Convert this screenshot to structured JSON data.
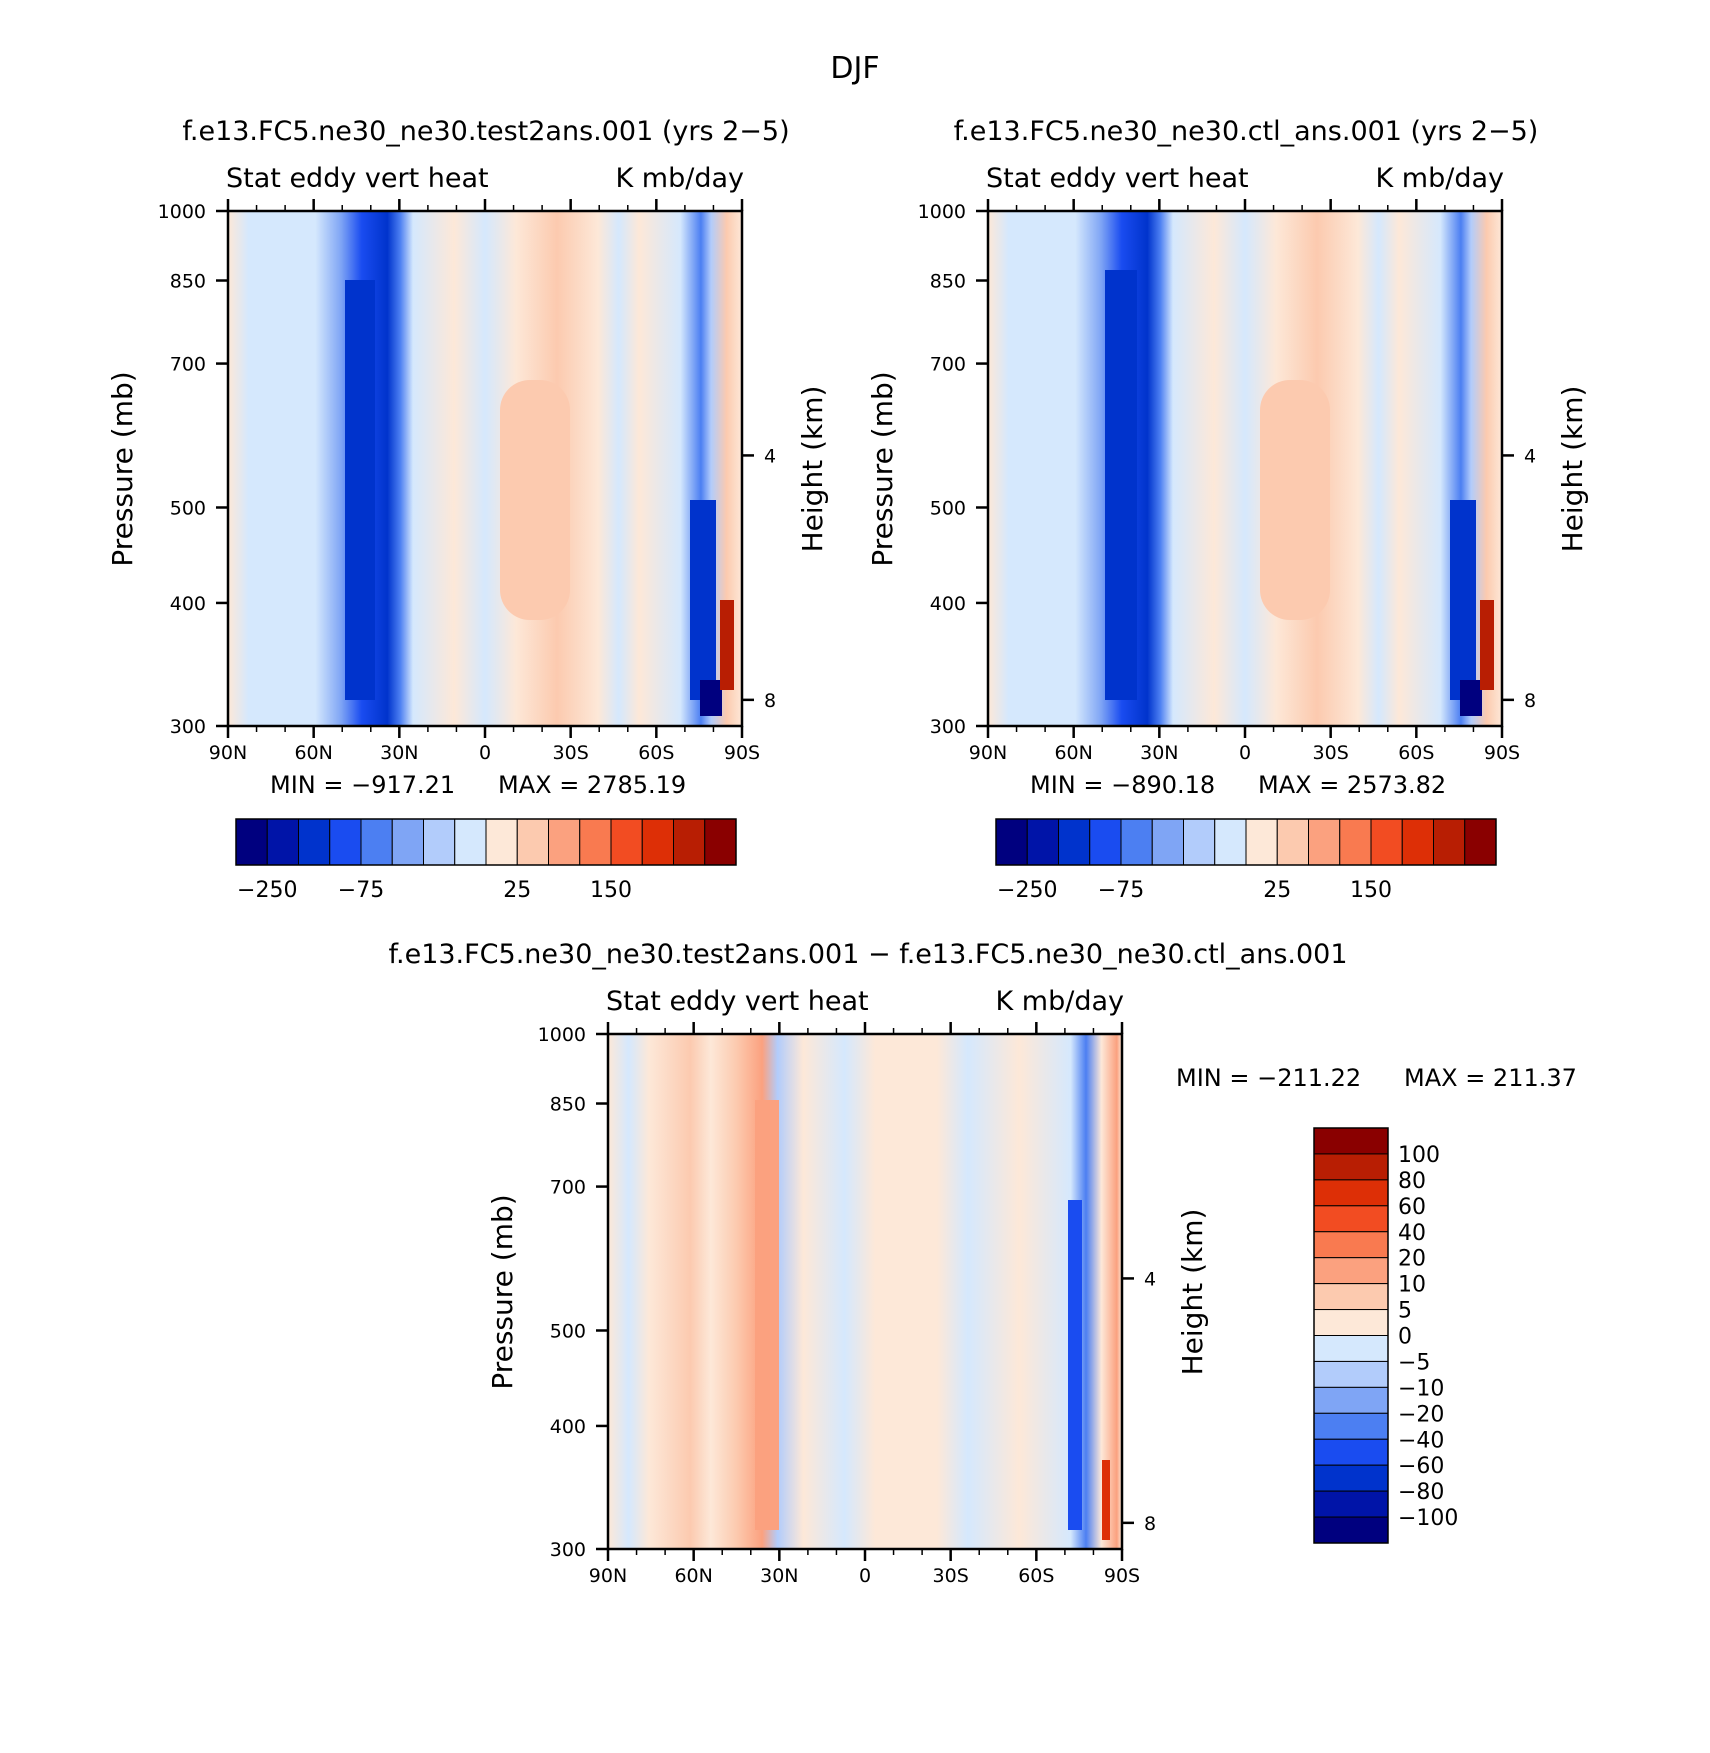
{
  "figure": {
    "title": "DJF"
  },
  "chart_data": [
    {
      "type": "heatmap",
      "title": "f.e13.FC5.ne30_ne30.test2ans.001 (yrs 2−5)",
      "left_string": "Stat eddy vert heat",
      "right_string": "K mb/day",
      "xlabel": "",
      "ylabel": "Pressure (mb)",
      "ylabel_right": "Height (km)",
      "x_ticks": [
        "90N",
        "60N",
        "30N",
        "0",
        "30S",
        "60S",
        "90S"
      ],
      "y_ticks": [
        "300",
        "400",
        "500",
        "700",
        "850",
        "1000"
      ],
      "y_ticks_right": [
        "8",
        "4"
      ],
      "xlim": [
        90,
        -90
      ],
      "ylim": [
        1000,
        300
      ],
      "y_scale": "log",
      "min_label": "MIN = −917.21",
      "max_label": "MAX = 2785.19",
      "colorbar_labels": [
        "−250",
        "−75",
        "25",
        "150"
      ],
      "colorbar_orientation": "horizontal"
    },
    {
      "type": "heatmap",
      "title": "f.e13.FC5.ne30_ne30.ctl_ans.001 (yrs 2−5)",
      "left_string": "Stat eddy vert heat",
      "right_string": "K mb/day",
      "xlabel": "",
      "ylabel": "Pressure (mb)",
      "ylabel_right": "Height (km)",
      "x_ticks": [
        "90N",
        "60N",
        "30N",
        "0",
        "30S",
        "60S",
        "90S"
      ],
      "y_ticks": [
        "300",
        "400",
        "500",
        "700",
        "850",
        "1000"
      ],
      "y_ticks_right": [
        "8",
        "4"
      ],
      "xlim": [
        90,
        -90
      ],
      "ylim": [
        1000,
        300
      ],
      "y_scale": "log",
      "min_label": "MIN = −890.18",
      "max_label": "MAX = 2573.82",
      "colorbar_labels": [
        "−250",
        "−75",
        "25",
        "150"
      ],
      "colorbar_orientation": "horizontal"
    },
    {
      "type": "heatmap",
      "title": "f.e13.FC5.ne30_ne30.test2ans.001 − f.e13.FC5.ne30_ne30.ctl_ans.001",
      "left_string": "Stat eddy vert heat",
      "right_string": "K mb/day",
      "xlabel": "",
      "ylabel": "Pressure (mb)",
      "ylabel_right": "Height (km)",
      "x_ticks": [
        "90N",
        "60N",
        "30N",
        "0",
        "30S",
        "60S",
        "90S"
      ],
      "y_ticks": [
        "300",
        "400",
        "500",
        "700",
        "850",
        "1000"
      ],
      "y_ticks_right": [
        "8",
        "4"
      ],
      "xlim": [
        90,
        -90
      ],
      "ylim": [
        1000,
        300
      ],
      "y_scale": "log",
      "min_label": "MIN = −211.22",
      "max_label": "MAX = 211.37",
      "colorbar_labels": [
        "100",
        "80",
        "60",
        "40",
        "20",
        "10",
        "5",
        "0",
        "−5",
        "−10",
        "−20",
        "−40",
        "−60",
        "−80",
        "−100"
      ],
      "colorbar_orientation": "vertical"
    }
  ],
  "colors": {
    "palette": [
      "#00007f",
      "#0014a8",
      "#0033cc",
      "#1a4cf0",
      "#4c7ff2",
      "#7fa5f5",
      "#b2ccfb",
      "#d5e8fd",
      "#fde8d8",
      "#fccaaf",
      "#fba17f",
      "#f97a50",
      "#f24c22",
      "#dd2f06",
      "#b81e03",
      "#8a0000"
    ]
  }
}
